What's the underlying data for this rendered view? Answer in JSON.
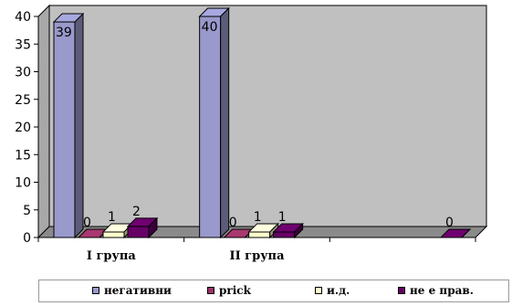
{
  "chart_data": {
    "type": "bar",
    "categories": [
      "I група",
      "II група",
      ""
    ],
    "series": [
      {
        "name": "негативни",
        "color": "#9999cc",
        "values": [
          39,
          40,
          null
        ]
      },
      {
        "name": "prick",
        "color": "#993366",
        "values": [
          0,
          0,
          null
        ]
      },
      {
        "name": "и.д.",
        "color": "#ffffcc",
        "values": [
          1,
          1,
          null
        ]
      },
      {
        "name": "не е прав.",
        "color": "#660066",
        "values": [
          2,
          1,
          0
        ]
      }
    ],
    "ylim": [
      0,
      40
    ],
    "yticks": [
      0,
      5,
      10,
      15,
      20,
      25,
      30,
      35,
      40
    ],
    "grid": false,
    "legend_position": "bottom",
    "plot_background": "#c0c0c0"
  }
}
